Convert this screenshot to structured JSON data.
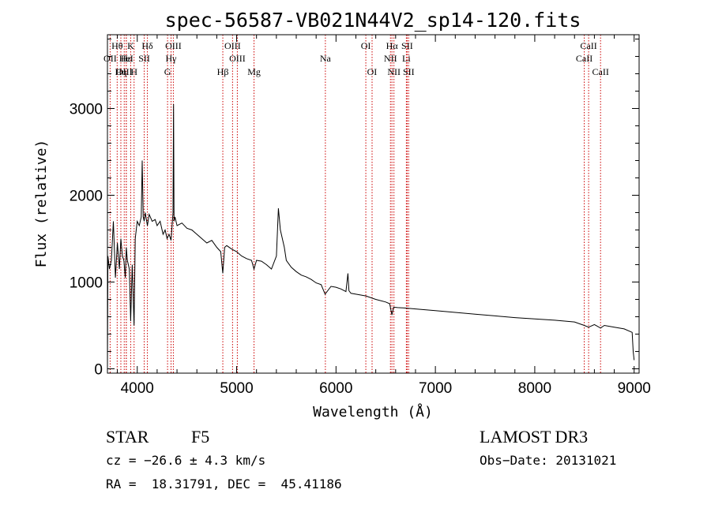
{
  "chart_data": {
    "type": "line",
    "title": "spec-56587-VB021N44V2_sp14-120.fits",
    "xlabel": "Wavelength (Å)",
    "ylabel": "Flux (relative)",
    "xlim": [
      3700,
      9050
    ],
    "ylim": [
      -50,
      3850
    ],
    "xticks": [
      4000,
      5000,
      6000,
      7000,
      8000,
      9000
    ],
    "yticks": [
      0,
      1000,
      2000,
      3000
    ],
    "grid": false,
    "series": [
      {
        "name": "flux",
        "color": "#000000",
        "x": [
          3700,
          3705,
          3720,
          3740,
          3760,
          3780,
          3800,
          3820,
          3835,
          3850,
          3865,
          3880,
          3890,
          3900,
          3920,
          3934,
          3950,
          3968,
          3980,
          4000,
          4020,
          4040,
          4050,
          4060,
          4070,
          4080,
          4102,
          4120,
          4150,
          4180,
          4200,
          4230,
          4260,
          4280,
          4300,
          4320,
          4340,
          4360,
          4365,
          4370,
          4380,
          4400,
          4450,
          4500,
          4550,
          4600,
          4650,
          4700,
          4750,
          4800,
          4840,
          4861,
          4880,
          4900,
          4950,
          5000,
          5050,
          5100,
          5150,
          5175,
          5200,
          5250,
          5300,
          5350,
          5400,
          5420,
          5440,
          5460,
          5480,
          5500,
          5550,
          5600,
          5650,
          5700,
          5750,
          5800,
          5850,
          5890,
          5950,
          6000,
          6050,
          6100,
          6120,
          6130,
          6150,
          6200,
          6300,
          6400,
          6500,
          6540,
          6563,
          6580,
          6620,
          6700,
          6800,
          7000,
          7200,
          7400,
          7600,
          7800,
          8000,
          8200,
          8400,
          8498,
          8542,
          8600,
          8662,
          8700,
          8800,
          8900,
          8980,
          8990,
          9000
        ],
        "y": [
          20,
          1300,
          1150,
          1250,
          1700,
          1050,
          1450,
          1150,
          1500,
          1300,
          1250,
          1050,
          1400,
          1250,
          1150,
          550,
          1200,
          500,
          1500,
          1700,
          1650,
          1750,
          2400,
          1750,
          1700,
          1800,
          1650,
          1780,
          1700,
          1720,
          1650,
          1700,
          1550,
          1600,
          1500,
          1550,
          1480,
          1800,
          3050,
          1700,
          1750,
          1650,
          1680,
          1620,
          1600,
          1550,
          1500,
          1450,
          1480,
          1400,
          1350,
          1100,
          1400,
          1420,
          1380,
          1350,
          1300,
          1270,
          1250,
          1150,
          1250,
          1240,
          1200,
          1150,
          1300,
          1850,
          1600,
          1500,
          1400,
          1250,
          1170,
          1120,
          1080,
          1060,
          1030,
          990,
          970,
          860,
          950,
          940,
          920,
          890,
          1100,
          900,
          870,
          860,
          840,
          800,
          770,
          750,
          620,
          710,
          705,
          700,
          690,
          670,
          650,
          630,
          610,
          590,
          575,
          560,
          540,
          500,
          480,
          510,
          470,
          500,
          480,
          460,
          420,
          200,
          100
        ]
      }
    ],
    "emission_lines": [
      {
        "label": "Hθ",
        "x": 3798,
        "row": 1
      },
      {
        "label": "OII",
        "x": 3727,
        "row": 2
      },
      {
        "label": "OIII",
        "x": 3869,
        "row": 3
      },
      {
        "label": "Hε",
        "x": 3890,
        "row": 2
      },
      {
        "label": "Hη",
        "x": 3835,
        "row": 3
      },
      {
        "label": "K",
        "x": 3934,
        "row": 1
      },
      {
        "label": "HeI",
        "x": 3889,
        "row": 2
      },
      {
        "label": "H",
        "x": 3968,
        "row": 3
      },
      {
        "label": "SII",
        "x": 4070,
        "row": 2
      },
      {
        "label": "Hδ",
        "x": 4102,
        "row": 1
      },
      {
        "label": "OIII",
        "x": 4363,
        "row": 1
      },
      {
        "label": "Hγ",
        "x": 4340,
        "row": 2
      },
      {
        "label": "G",
        "x": 4305,
        "row": 3
      },
      {
        "label": "OIII",
        "x": 4959,
        "row": 1
      },
      {
        "label": "OIII",
        "x": 5007,
        "row": 2
      },
      {
        "label": "Hβ",
        "x": 4861,
        "row": 3
      },
      {
        "label": "Mg",
        "x": 5175,
        "row": 3
      },
      {
        "label": "Na",
        "x": 5893,
        "row": 2
      },
      {
        "label": "OI",
        "x": 6300,
        "row": 1
      },
      {
        "label": "OI",
        "x": 6363,
        "row": 3
      },
      {
        "label": "Hα",
        "x": 6563,
        "row": 1
      },
      {
        "label": "NII",
        "x": 6548,
        "row": 2
      },
      {
        "label": "NII",
        "x": 6583,
        "row": 3
      },
      {
        "label": "SII",
        "x": 6716,
        "row": 1
      },
      {
        "label": "Li",
        "x": 6708,
        "row": 2
      },
      {
        "label": "SII",
        "x": 6731,
        "row": 3
      },
      {
        "label": "CaII",
        "x": 8542,
        "row": 1
      },
      {
        "label": "CaII",
        "x": 8498,
        "row": 2
      },
      {
        "label": "CaII",
        "x": 8662,
        "row": 3
      }
    ]
  },
  "info": {
    "object_class": "STAR",
    "subclass": "F5",
    "survey": "LAMOST DR3",
    "cz": "cz = −26.6 ± 4.3 km/s",
    "obs_date": "Obs−Date: 20131021",
    "coords": "RA =  18.31791, DEC =  45.41186"
  },
  "colors": {
    "line_marker": "#cc0000",
    "spectrum": "#000000"
  }
}
